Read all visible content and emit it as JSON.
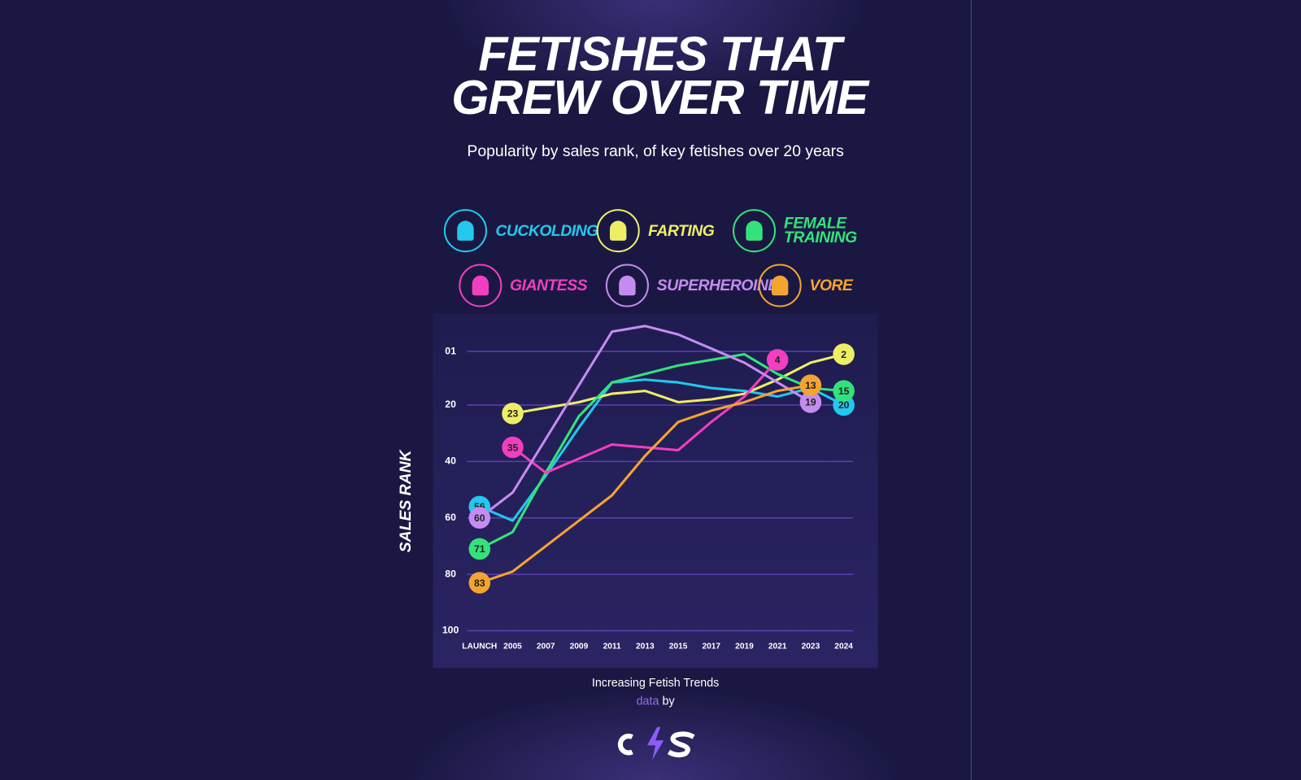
{
  "header": {
    "title": "FETISHES THAT GREW OVER TIME",
    "subtitle": "Popularity by sales rank, of key fetishes over 20 years"
  },
  "chart_data": {
    "type": "line",
    "y_label": "SALES RANK",
    "categories": [
      "LAUNCH",
      "2005",
      "2007",
      "2009",
      "2011",
      "2013",
      "2015",
      "2017",
      "2019",
      "2021",
      "2023",
      "2024"
    ],
    "series": [
      {
        "name": "CUCKOLDING",
        "color": "#22c8ee",
        "values": [
          56,
          61,
          45,
          28,
          12,
          11,
          12,
          14,
          15,
          17,
          14,
          20
        ]
      },
      {
        "name": "FARTING",
        "color": "#eeee66",
        "values": [
          null,
          23,
          21,
          19,
          16,
          15,
          19,
          18,
          16,
          11,
          5,
          2
        ]
      },
      {
        "name": "FEMALE TRAINING",
        "color": "#33e37a",
        "values": [
          71,
          65,
          44,
          24,
          12,
          9,
          6,
          4,
          2,
          9,
          14,
          15
        ]
      },
      {
        "name": "GIANTESS",
        "color": "#f23ec0",
        "values": [
          null,
          35,
          44,
          39,
          34,
          35,
          36,
          26,
          17,
          4,
          null,
          null
        ]
      },
      {
        "name": "SUPERHEROINES",
        "color": "#c48cf0",
        "values": [
          60,
          51,
          32,
          13,
          -6,
          -8,
          -5,
          0,
          5,
          12,
          19,
          null
        ]
      },
      {
        "name": "VORE",
        "color": "#f4a431",
        "values": [
          83,
          79,
          70,
          61,
          52,
          38,
          26,
          22,
          19,
          15,
          13,
          null
        ]
      }
    ],
    "ylim": [
      100,
      -10
    ],
    "yticks": [
      {
        "value": 1,
        "label": "01"
      },
      20,
      40,
      60,
      80,
      100
    ],
    "grid": true,
    "legend": "top"
  },
  "footer": {
    "caption": "Increasing Fetish Trends",
    "credit_link": "data",
    "credit_text": "by"
  }
}
